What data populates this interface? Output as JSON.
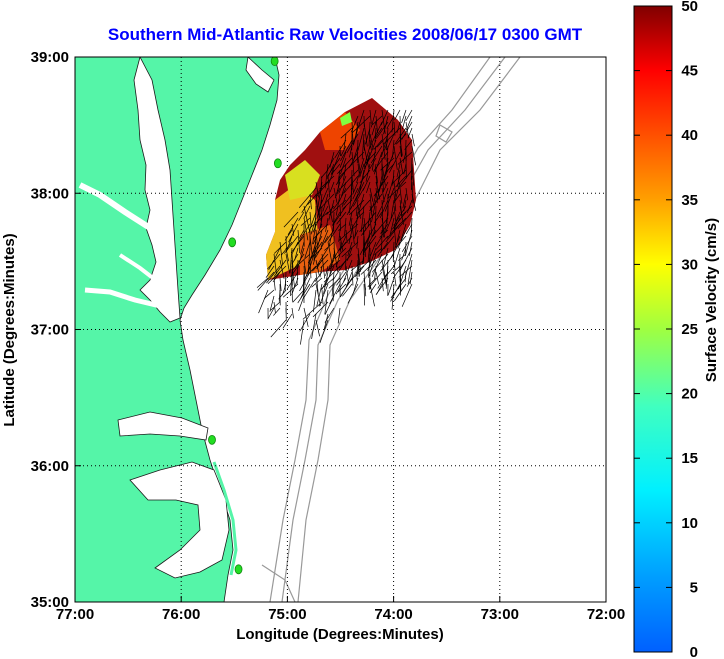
{
  "title": "Southern Mid-Atlantic Raw Velocities 2008/06/17 0300 GMT",
  "map": {
    "xlabel": "Longitude (Degrees:Minutes)",
    "ylabel": "Latitude (Degrees:Minutes)",
    "xlim": [
      -77,
      -72
    ],
    "ylim": [
      35,
      39
    ],
    "x_ticks": [
      {
        "value": -77,
        "label": "77:00"
      },
      {
        "value": -76,
        "label": "76:00"
      },
      {
        "value": -75,
        "label": "75:00"
      },
      {
        "value": -74,
        "label": "74:00"
      },
      {
        "value": -73,
        "label": "73:00"
      },
      {
        "value": -72,
        "label": "72:00"
      }
    ],
    "y_ticks": [
      {
        "value": 39,
        "label": "39:00"
      },
      {
        "value": 38,
        "label": "38:00"
      },
      {
        "value": 37,
        "label": "37:00"
      },
      {
        "value": 36,
        "label": "36:00"
      },
      {
        "value": 35,
        "label": "35:00"
      }
    ],
    "grid": "dotted",
    "land_color": "#55f5a8",
    "vector_color": "#000000",
    "stations": [
      {
        "lon": -75.12,
        "lat": 38.97
      },
      {
        "lon": -75.09,
        "lat": 38.22
      },
      {
        "lon": -75.52,
        "lat": 37.64
      },
      {
        "lon": -75.71,
        "lat": 36.19
      },
      {
        "lon": -75.46,
        "lat": 35.24
      }
    ],
    "station_color": "#22dd22"
  },
  "colorbar": {
    "label": "Surface Velocity (cm/s)",
    "min": 0,
    "max": 50,
    "ticks": [
      {
        "value": 50,
        "label": "50"
      },
      {
        "value": 45,
        "label": "45"
      },
      {
        "value": 40,
        "label": "40"
      },
      {
        "value": 35,
        "label": "35"
      },
      {
        "value": 30,
        "label": "30"
      },
      {
        "value": 25,
        "label": "25"
      },
      {
        "value": 20,
        "label": "20"
      },
      {
        "value": 15,
        "label": "15"
      },
      {
        "value": 10,
        "label": "10"
      },
      {
        "value": 5,
        "label": "5"
      },
      {
        "value": 0,
        "label": "0"
      }
    ],
    "colormap": "jet"
  }
}
